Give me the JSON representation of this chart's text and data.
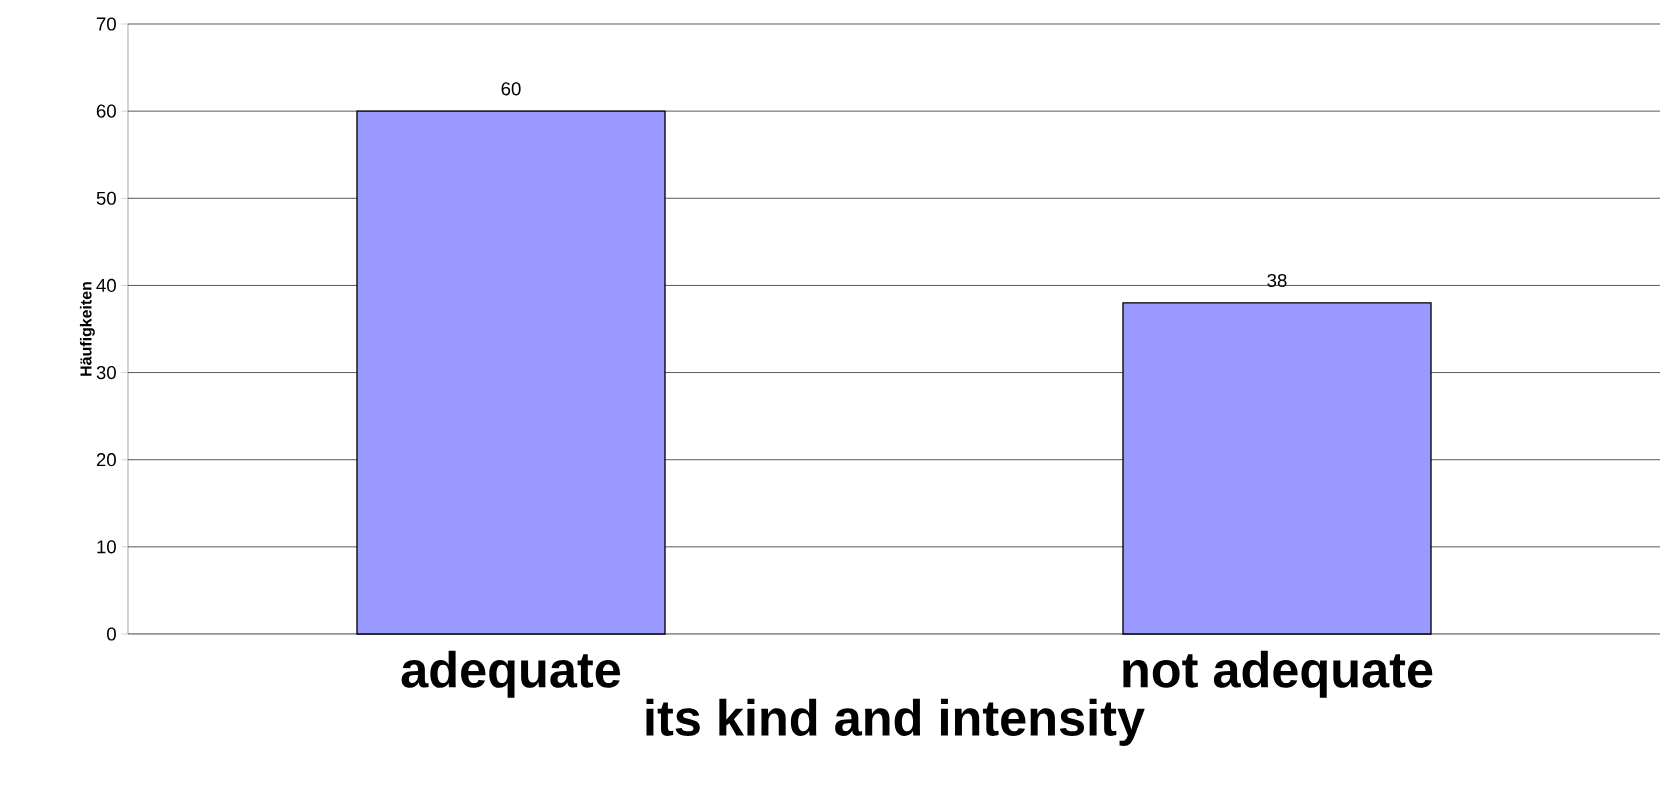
{
  "chart_data": {
    "type": "bar",
    "xlabel": "its kind and intensity",
    "ylabel": "Häufigkeiten",
    "categories": [
      "adequate",
      "not adequate"
    ],
    "values": [
      60,
      38
    ],
    "color": "#9999ff",
    "ylim": [
      0,
      70
    ],
    "yticks": [
      0,
      10,
      20,
      30,
      40,
      50,
      60,
      70
    ],
    "grid": "y",
    "data_labels": true
  }
}
